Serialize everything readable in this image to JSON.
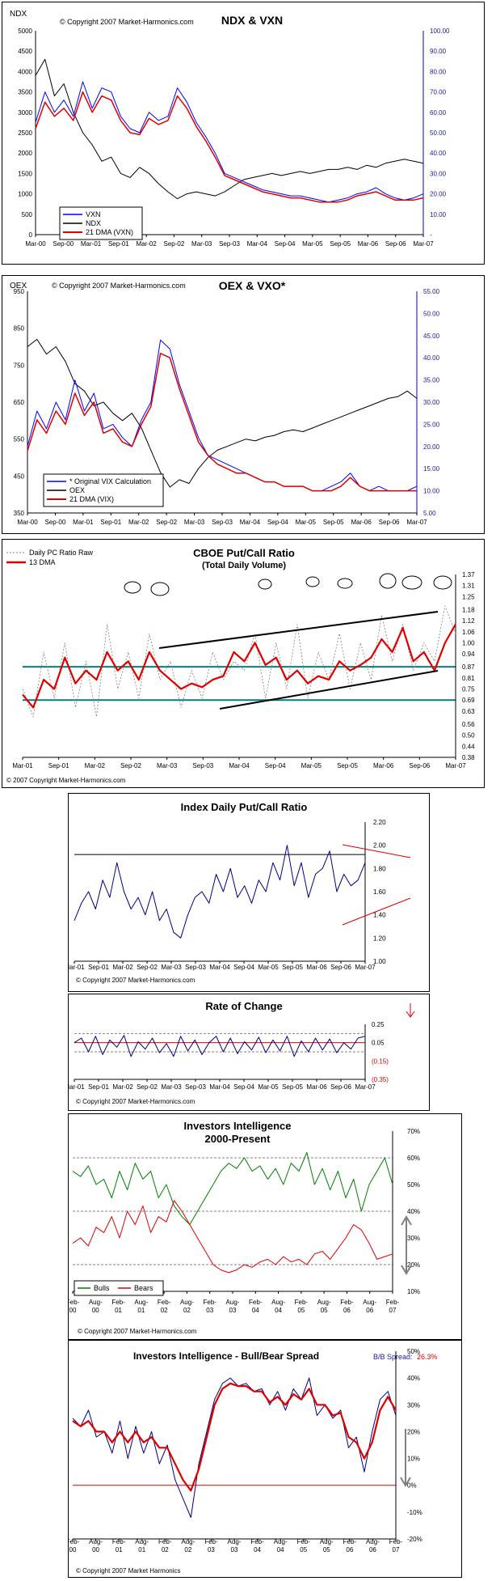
{
  "chart_data": [
    {
      "id": "ndx_vxn",
      "type": "line",
      "title": "NDX & VXN",
      "left_axis_label": "NDX",
      "copyright": "© Copyright 2007 Market-Harmonics.com",
      "left_ylim": [
        0,
        5000
      ],
      "left_ticks": [
        "0",
        "500",
        "1000",
        "1500",
        "2000",
        "2500",
        "3000",
        "3500",
        "4000",
        "4500",
        "5000"
      ],
      "right_ylim": [
        0,
        100
      ],
      "right_ticks": [
        "-",
        "10.00",
        "20.00",
        "30.00",
        "40.00",
        "50.00",
        "60.00",
        "70.00",
        "80.00",
        "90.00",
        "100.00"
      ],
      "x_ticks": [
        "Mar-00",
        "Sep-00",
        "Mar-01",
        "Sep-01",
        "Mar-02",
        "Sep-02",
        "Mar-03",
        "Sep-03",
        "Mar-04",
        "Sep-04",
        "Mar-05",
        "Sep-05",
        "Mar-06",
        "Sep-06",
        "Mar-07"
      ],
      "legend": [
        "VXN",
        "NDX",
        "21 DMA (VXN)"
      ],
      "series": [
        {
          "name": "NDX",
          "axis": "left",
          "color": "#000000",
          "values": [
            3900,
            4300,
            3400,
            3700,
            3000,
            2500,
            2200,
            1800,
            1900,
            1500,
            1400,
            1650,
            1500,
            1250,
            1050,
            880,
            1000,
            1050,
            1000,
            950,
            1050,
            1200,
            1350,
            1400,
            1450,
            1500,
            1450,
            1500,
            1550,
            1500,
            1550,
            1600,
            1600,
            1650,
            1600,
            1700,
            1650,
            1750,
            1800,
            1850,
            1800,
            1750
          ]
        },
        {
          "name": "VXN",
          "axis": "right",
          "color": "#0000ff",
          "values": [
            55,
            70,
            60,
            66,
            58,
            75,
            62,
            72,
            70,
            58,
            52,
            50,
            60,
            56,
            58,
            72,
            65,
            55,
            48,
            40,
            30,
            28,
            26,
            24,
            22,
            21,
            20,
            19,
            19,
            18,
            17,
            16,
            17,
            18,
            20,
            21,
            23,
            20,
            18,
            17,
            18,
            20
          ]
        },
        {
          "name": "21 DMA (VXN)",
          "axis": "right",
          "color": "#e00000",
          "values": [
            52,
            65,
            58,
            62,
            56,
            70,
            60,
            68,
            66,
            56,
            50,
            49,
            57,
            54,
            56,
            68,
            62,
            53,
            46,
            38,
            29,
            27,
            25,
            23,
            21,
            20,
            19,
            18,
            18,
            17,
            16,
            16,
            16,
            17,
            19,
            20,
            21,
            19,
            17,
            17,
            17,
            18
          ]
        }
      ]
    },
    {
      "id": "oex_vxo",
      "type": "line",
      "title": "OEX & VXO*",
      "left_axis_label": "OEX",
      "copyright": "© Copyright 2007 Market-Harmonics.com",
      "left_ylim": [
        350,
        950
      ],
      "left_ticks": [
        "350",
        "450",
        "550",
        "650",
        "750",
        "850",
        "950"
      ],
      "right_ylim": [
        5,
        55
      ],
      "right_ticks": [
        "5.00",
        "10.00",
        "15.00",
        "20.00",
        "25.00",
        "30.00",
        "35.00",
        "40.00",
        "45.00",
        "50.00",
        "55.00"
      ],
      "x_ticks": [
        "Mar-00",
        "Sep-00",
        "Mar-01",
        "Sep-01",
        "Mar-02",
        "Sep-02",
        "Mar-03",
        "Sep-03",
        "Mar-04",
        "Sep-04",
        "Mar-05",
        "Sep-05",
        "Mar-06",
        "Sep-06",
        "Mar-07"
      ],
      "legend": [
        "* Original VIX Calculation",
        "OEX",
        "21 DMA (VIX)"
      ],
      "series": [
        {
          "name": "OEX",
          "axis": "left",
          "color": "#000000",
          "values": [
            800,
            820,
            780,
            800,
            760,
            700,
            680,
            640,
            650,
            620,
            600,
            620,
            580,
            520,
            460,
            420,
            440,
            430,
            470,
            500,
            520,
            530,
            540,
            550,
            545,
            555,
            560,
            570,
            575,
            570,
            580,
            590,
            600,
            610,
            620,
            630,
            640,
            650,
            660,
            665,
            680,
            660
          ]
        },
        {
          "name": "* Original VIX Calculation",
          "axis": "right",
          "color": "#0000ff",
          "values": [
            20,
            28,
            24,
            30,
            26,
            35,
            28,
            32,
            24,
            25,
            22,
            20,
            26,
            30,
            44,
            42,
            34,
            28,
            22,
            18,
            17,
            16,
            15,
            14,
            13,
            12,
            12,
            11,
            11,
            11,
            10,
            10,
            11,
            12,
            14,
            11,
            10,
            11,
            10,
            10,
            10,
            11
          ]
        },
        {
          "name": "21 DMA (VIX)",
          "axis": "right",
          "color": "#e00000",
          "values": [
            19,
            26,
            23,
            28,
            25,
            32,
            27,
            30,
            23,
            24,
            21,
            20,
            25,
            29,
            41,
            40,
            33,
            27,
            21,
            18,
            16,
            15,
            14,
            14,
            13,
            12,
            12,
            11,
            11,
            11,
            10,
            10,
            10,
            11,
            13,
            11,
            10,
            10,
            10,
            10,
            10,
            10
          ]
        }
      ]
    },
    {
      "id": "cboe_pc",
      "type": "line",
      "title": "CBOE Put/Call Ratio",
      "subtitle": "(Total Daily Volume)",
      "copyright": "© 2007 Copyright Market-Harmonics.com",
      "ylim": [
        0.38,
        1.37
      ],
      "right_ticks": [
        "1.37",
        "1.31",
        "1.25",
        "1.18",
        "1.12",
        "1.06",
        "1.00",
        "0.94",
        "0.87",
        "0.81",
        "0.75",
        "0.69",
        "0.63",
        "0.56",
        "0.50",
        "0.44",
        "0.38"
      ],
      "x_ticks": [
        "Mar-01",
        "Sep-01",
        "Mar-02",
        "Sep-02",
        "Mar-03",
        "Sep-03",
        "Mar-04",
        "Sep-04",
        "Mar-05",
        "Sep-05",
        "Mar-06",
        "Sep-06",
        "Mar-07"
      ],
      "legend": [
        "Daily PC Ratio Raw",
        "13 DMA"
      ],
      "horizontal_lines": [
        0.87,
        0.69
      ],
      "series": [
        {
          "name": "Daily PC Ratio Raw",
          "color": "#808080",
          "values": [
            0.75,
            0.6,
            0.95,
            0.7,
            1.0,
            0.65,
            0.9,
            0.6,
            1.1,
            0.75,
            0.95,
            0.7,
            1.05,
            0.8,
            0.9,
            0.65,
            0.85,
            0.7,
            0.95,
            0.8,
            0.9,
            0.85,
            1.05,
            0.7,
            1.0,
            0.75,
            1.1,
            0.7,
            0.95,
            0.8,
            1.05,
            0.75,
            1.0,
            0.8,
            1.15,
            0.9,
            1.1,
            0.85,
            1.0,
            0.9,
            1.2,
            1.05
          ]
        },
        {
          "name": "13 DMA",
          "color": "#e00000",
          "values": [
            0.72,
            0.65,
            0.8,
            0.75,
            0.92,
            0.78,
            0.85,
            0.8,
            0.95,
            0.85,
            0.9,
            0.8,
            0.95,
            0.85,
            0.8,
            0.75,
            0.78,
            0.76,
            0.8,
            0.82,
            0.95,
            0.9,
            1.0,
            0.88,
            0.92,
            0.8,
            0.85,
            0.78,
            0.82,
            0.8,
            0.9,
            0.85,
            0.88,
            0.92,
            1.02,
            0.95,
            1.08,
            0.9,
            0.95,
            0.85,
            1.0,
            1.1
          ]
        }
      ]
    },
    {
      "id": "index_pc",
      "type": "line",
      "title": "Index Daily Put/Call Ratio",
      "copyright": "© Copyright 2007 Market-Harmonics.com",
      "ylim": [
        1.0,
        2.2
      ],
      "right_ticks": [
        "2.20",
        "2.00",
        "1.80",
        "1.60",
        "1.40",
        "1.20",
        "1.00"
      ],
      "x_ticks": [
        "Mar-01",
        "Sep-01",
        "Mar-02",
        "Sep-02",
        "Mar-03",
        "Sep-03",
        "Mar-04",
        "Sep-04",
        "Mar-05",
        "Sep-05",
        "Mar-06",
        "Sep-06",
        "Mar-07"
      ],
      "horizontal_lines": [
        1.92
      ],
      "series": [
        {
          "name": "Index P/C",
          "color": "#000080",
          "values": [
            1.35,
            1.5,
            1.6,
            1.45,
            1.7,
            1.55,
            1.85,
            1.6,
            1.45,
            1.55,
            1.4,
            1.6,
            1.35,
            1.45,
            1.25,
            1.2,
            1.4,
            1.55,
            1.6,
            1.5,
            1.75,
            1.6,
            1.8,
            1.55,
            1.65,
            1.5,
            1.7,
            1.6,
            1.85,
            1.7,
            2.0,
            1.65,
            1.85,
            1.55,
            1.75,
            1.8,
            1.95,
            1.6,
            1.75,
            1.65,
            1.7,
            1.85
          ]
        }
      ]
    },
    {
      "id": "roc",
      "type": "line",
      "title": "Rate of Change",
      "copyright": "© Copyright 2007 Market-Harmonics.com",
      "ylim": [
        -0.35,
        0.25
      ],
      "right_ticks": [
        "0.25",
        "0.05",
        "(0.15)",
        "(0.35)"
      ],
      "x_ticks": [
        "Mar-01",
        "Sep-01",
        "Mar-02",
        "Sep-02",
        "Mar-03",
        "Sep-03",
        "Mar-04",
        "Sep-04",
        "Mar-05",
        "Sep-05",
        "Mar-06",
        "Sep-06",
        "Mar-07"
      ],
      "horizontal_lines": [
        0.15,
        0.05,
        -0.05
      ],
      "series": [
        {
          "name": "ROC",
          "color": "#000080",
          "values": [
            0.05,
            0.1,
            -0.05,
            0.12,
            -0.08,
            0.08,
            0.0,
            0.13,
            -0.1,
            0.06,
            -0.02,
            0.1,
            -0.06,
            0.04,
            -0.1,
            0.12,
            -0.04,
            0.08,
            -0.08,
            0.05,
            0.12,
            -0.05,
            0.1,
            -0.07,
            0.06,
            -0.03,
            0.11,
            -0.06,
            0.08,
            -0.04,
            0.12,
            -0.1,
            0.07,
            -0.05,
            0.1,
            -0.03,
            0.09,
            -0.06,
            0.05,
            -0.02,
            0.1,
            0.12
          ]
        }
      ]
    },
    {
      "id": "ii",
      "type": "line",
      "title": "Investors Intelligence",
      "subtitle": "2000-Present",
      "copyright": "© Copyright 2007 Market-Harmonics.com",
      "ylim": [
        10,
        70
      ],
      "right_ticks": [
        "70%",
        "60%",
        "50%",
        "40%",
        "30%",
        "20%",
        "10%"
      ],
      "x_ticks": [
        "Feb-00",
        "Aug-00",
        "Feb-01",
        "Aug-01",
        "Feb-02",
        "Aug-02",
        "Feb-03",
        "Aug-03",
        "Feb-04",
        "Aug-04",
        "Feb-05",
        "Aug-05",
        "Feb-06",
        "Aug-06",
        "Feb-07"
      ],
      "legend": [
        "Bulls",
        "Bears"
      ],
      "horizontal_lines": [
        60,
        40,
        20
      ],
      "series": [
        {
          "name": "Bulls",
          "color": "#008000",
          "values": [
            55,
            53,
            57,
            50,
            52,
            45,
            55,
            48,
            58,
            52,
            55,
            45,
            50,
            42,
            38,
            35,
            40,
            45,
            50,
            55,
            58,
            56,
            60,
            55,
            57,
            52,
            56,
            50,
            58,
            55,
            62,
            50,
            56,
            48,
            55,
            45,
            52,
            40,
            50,
            55,
            60,
            50
          ]
        },
        {
          "name": "Bears",
          "color": "#e00000",
          "values": [
            28,
            30,
            27,
            34,
            32,
            38,
            30,
            40,
            35,
            42,
            32,
            38,
            36,
            44,
            40,
            35,
            30,
            25,
            20,
            18,
            17,
            18,
            20,
            19,
            21,
            22,
            20,
            23,
            21,
            22,
            20,
            24,
            25,
            22,
            26,
            30,
            35,
            33,
            28,
            22,
            23,
            24
          ]
        }
      ]
    },
    {
      "id": "ii_spread",
      "type": "line",
      "title": "Investors Intelligence - Bull/Bear Spread",
      "annotation_label": "B/B Spread:",
      "annotation_value": "26.3%",
      "copyright": "© Copyright 2007 Market Harmonics",
      "ylim": [
        -20,
        50
      ],
      "right_ticks": [
        "50%",
        "40%",
        "30%",
        "20%",
        "10%",
        "0%",
        "-10%",
        "-20%"
      ],
      "x_ticks": [
        "Feb-00",
        "Aug-00",
        "Feb-01",
        "Aug-01",
        "Feb-02",
        "Aug-02",
        "Feb-03",
        "Aug-03",
        "Feb-04",
        "Aug-04",
        "Feb-05",
        "Aug-05",
        "Feb-06",
        "Aug-06",
        "Feb-07"
      ],
      "horizontal_lines": [
        0
      ],
      "series": [
        {
          "name": "Spread",
          "color": "#000080",
          "values": [
            25,
            22,
            28,
            18,
            20,
            12,
            24,
            10,
            22,
            12,
            20,
            8,
            15,
            2,
            -5,
            -12,
            8,
            20,
            32,
            38,
            40,
            37,
            38,
            35,
            36,
            30,
            35,
            28,
            36,
            32,
            40,
            26,
            30,
            25,
            28,
            14,
            18,
            5,
            20,
            32,
            35,
            26
          ]
        },
        {
          "name": "Spread MA",
          "color": "#e00000",
          "values": [
            24,
            22,
            24,
            20,
            20,
            16,
            20,
            16,
            20,
            16,
            18,
            14,
            14,
            8,
            2,
            -2,
            6,
            18,
            30,
            36,
            38,
            37,
            37,
            35,
            35,
            31,
            33,
            30,
            34,
            32,
            36,
            30,
            30,
            26,
            27,
            18,
            16,
            10,
            16,
            28,
            33,
            28
          ]
        }
      ]
    }
  ]
}
